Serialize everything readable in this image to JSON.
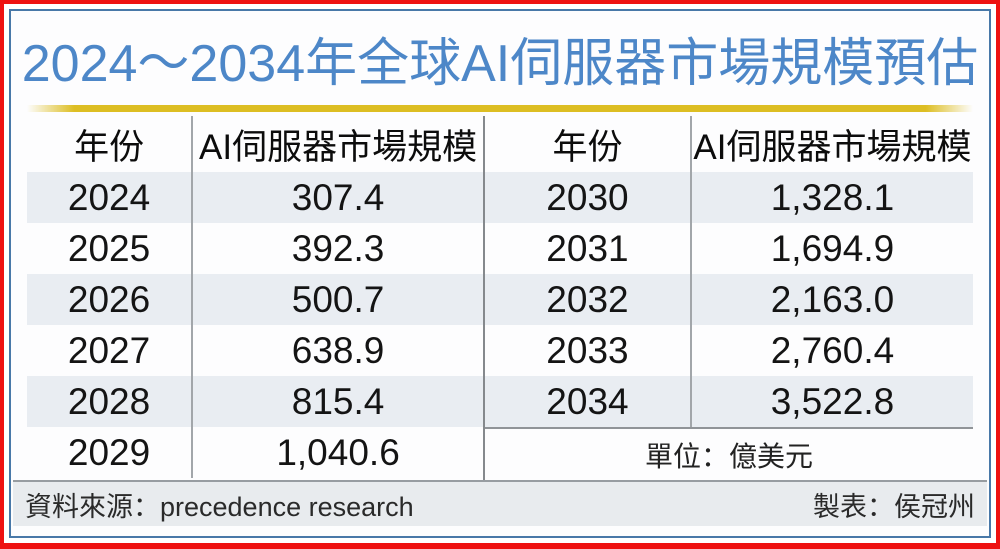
{
  "title": "2024～2034年全球AI伺服器市場規模預估",
  "colors": {
    "title_blue": "#4d87c8",
    "outer_border_red": "#ee1111",
    "inner_border_blue": "#4878a8",
    "gold_rule": "#ddbe23",
    "row_stripe": "#e9edf2",
    "footer_band": "#e8ebee"
  },
  "tables": {
    "left": {
      "headers": [
        "年份",
        "AI伺服器市場規模"
      ],
      "rows": [
        [
          "2024",
          "307.4"
        ],
        [
          "2025",
          "392.3"
        ],
        [
          "2026",
          "500.7"
        ],
        [
          "2027",
          "638.9"
        ],
        [
          "2028",
          "815.4"
        ],
        [
          "2029",
          "1,040.6"
        ]
      ]
    },
    "right": {
      "headers": [
        "年份",
        "AI伺服器市場規模"
      ],
      "rows": [
        [
          "2030",
          "1,328.1"
        ],
        [
          "2031",
          "1,694.9"
        ],
        [
          "2032",
          "2,163.0"
        ],
        [
          "2033",
          "2,760.4"
        ],
        [
          "2034",
          "3,522.8"
        ]
      ],
      "unit_note": "單位：億美元"
    }
  },
  "footer": {
    "source": "資料來源：precedence research",
    "credit": "製表：侯冠州"
  },
  "chart_data": {
    "type": "table",
    "title": "2024～2034年全球AI伺服器市場規模預估",
    "columns": [
      "年份",
      "AI伺服器市場規模"
    ],
    "unit": "億美元",
    "x": [
      2024,
      2025,
      2026,
      2027,
      2028,
      2029,
      2030,
      2031,
      2032,
      2033,
      2034
    ],
    "values": [
      307.4,
      392.3,
      500.7,
      638.9,
      815.4,
      1040.6,
      1328.1,
      1694.9,
      2163.0,
      2760.4,
      3522.8
    ],
    "source": "precedence research",
    "credit": "侯冠州"
  }
}
